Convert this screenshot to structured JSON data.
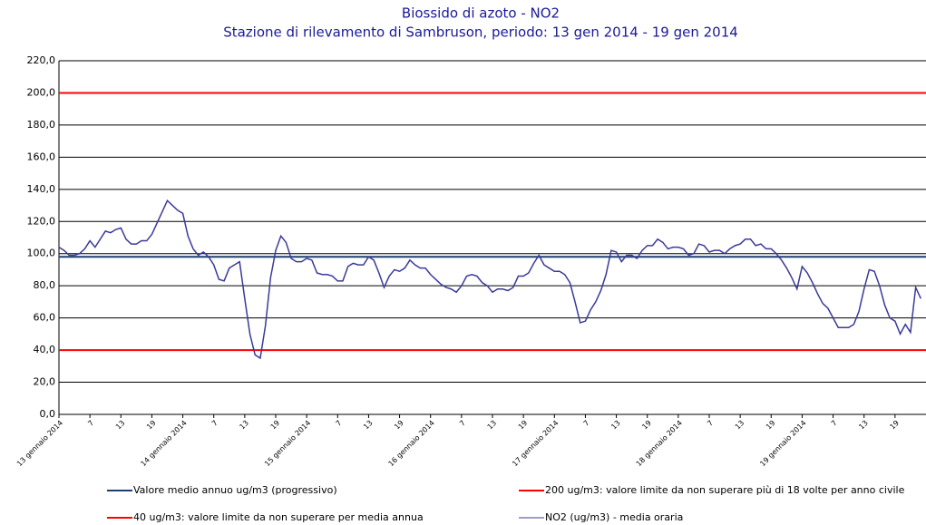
{
  "chart_data": {
    "type": "line",
    "title": "Biossido di azoto - NO2",
    "subtitle": "Stazione di rilevamento di Sambruson, periodo: 13 gen 2014 - 19 gen 2014",
    "categories": [
      "13 gennaio 2014",
      null,
      null,
      null,
      null,
      null,
      "7",
      null,
      null,
      null,
      null,
      null,
      "13",
      null,
      null,
      null,
      null,
      null,
      "19",
      null,
      null,
      null,
      null,
      null,
      "14 gennaio 2014",
      null,
      null,
      null,
      null,
      null,
      "7",
      null,
      null,
      null,
      null,
      null,
      "13",
      null,
      null,
      null,
      null,
      null,
      "19",
      null,
      null,
      null,
      null,
      null,
      "15 gennaio 2014",
      null,
      null,
      null,
      null,
      null,
      "7",
      null,
      null,
      null,
      null,
      null,
      "13",
      null,
      null,
      null,
      null,
      null,
      "19",
      null,
      null,
      null,
      null,
      null,
      "16 gennaio 2014",
      null,
      null,
      null,
      null,
      null,
      "7",
      null,
      null,
      null,
      null,
      null,
      "13",
      null,
      null,
      null,
      null,
      null,
      "19",
      null,
      null,
      null,
      null,
      null,
      "17 gennaio 2014",
      null,
      null,
      null,
      null,
      null,
      "7",
      null,
      null,
      null,
      null,
      null,
      "13",
      null,
      null,
      null,
      null,
      null,
      "19",
      null,
      null,
      null,
      null,
      null,
      "18 gennaio 2014",
      null,
      null,
      null,
      null,
      null,
      "7",
      null,
      null,
      null,
      null,
      null,
      "13",
      null,
      null,
      null,
      null,
      null,
      "19",
      null,
      null,
      null,
      null,
      null,
      "19 gennaio 2014",
      null,
      null,
      null,
      null,
      null,
      "7",
      null,
      null,
      null,
      null,
      null,
      "13",
      null,
      null,
      null,
      null,
      null,
      "19",
      null,
      null,
      null,
      null,
      null
    ],
    "series": [
      {
        "name": "NO2 (ug/m3)  - media oraria",
        "color": "#3a3a9a",
        "values": [
          104,
          102,
          99,
          99,
          100,
          103,
          108,
          104,
          109,
          114,
          113,
          115,
          116,
          109,
          106,
          106,
          108,
          108,
          112,
          119,
          126,
          133,
          130,
          127,
          125,
          111,
          103,
          99,
          101,
          98,
          93,
          84,
          83,
          91,
          93,
          95,
          72,
          50,
          37,
          35,
          55,
          85,
          102,
          111,
          107,
          97,
          95,
          95,
          97,
          96,
          88,
          87,
          87,
          86,
          83,
          83,
          92,
          94,
          93,
          93,
          98,
          96,
          88,
          79,
          86,
          90,
          89,
          91,
          96,
          93,
          91,
          91,
          87,
          84,
          81,
          79,
          78,
          76,
          80,
          86,
          87,
          86,
          82,
          80,
          76,
          78,
          78,
          77,
          79,
          86,
          86,
          88,
          94,
          99,
          93,
          91,
          89,
          89,
          87,
          82,
          70,
          57,
          58,
          65,
          70,
          77,
          87,
          102,
          101,
          95,
          99,
          99,
          97,
          102,
          105,
          105,
          109,
          107,
          103,
          104,
          104,
          103,
          99,
          100,
          106,
          105,
          101,
          102,
          102,
          100,
          103,
          105,
          106,
          109,
          109,
          105,
          106,
          103,
          103,
          100,
          96,
          91,
          85,
          78,
          92,
          88,
          82,
          75,
          69,
          66,
          60,
          54,
          54,
          54,
          56,
          64,
          78,
          90,
          89,
          80,
          68,
          60,
          58,
          50,
          56,
          51,
          79,
          72
        ]
      }
    ],
    "reference_lines": [
      {
        "name": "Valore medio annuo ug/m3 (progressivo)",
        "value": 98,
        "color": "#1f3f6f"
      },
      {
        "name": "200 ug/m3: valore limite da non superare più di 18 volte per anno civile",
        "value": 200,
        "color": "#ff0000"
      },
      {
        "name": "40 ug/m3: valore limite da non superare per media annua",
        "value": 40,
        "color": "#ff0000"
      }
    ],
    "ylim": [
      0,
      220
    ],
    "yticks": [
      {
        "value": 0,
        "label": "0,0"
      },
      {
        "value": 20,
        "label": "20,0"
      },
      {
        "value": 40,
        "label": "40,0"
      },
      {
        "value": 60,
        "label": "60,0"
      },
      {
        "value": 80,
        "label": "80,0"
      },
      {
        "value": 100,
        "label": "100,0"
      },
      {
        "value": 120,
        "label": "120,0"
      },
      {
        "value": 140,
        "label": "140,0"
      },
      {
        "value": 160,
        "label": "160,0"
      },
      {
        "value": 180,
        "label": "180,0"
      },
      {
        "value": 200,
        "label": "200,0"
      },
      {
        "value": 220,
        "label": "220,0"
      }
    ],
    "grid": true
  }
}
